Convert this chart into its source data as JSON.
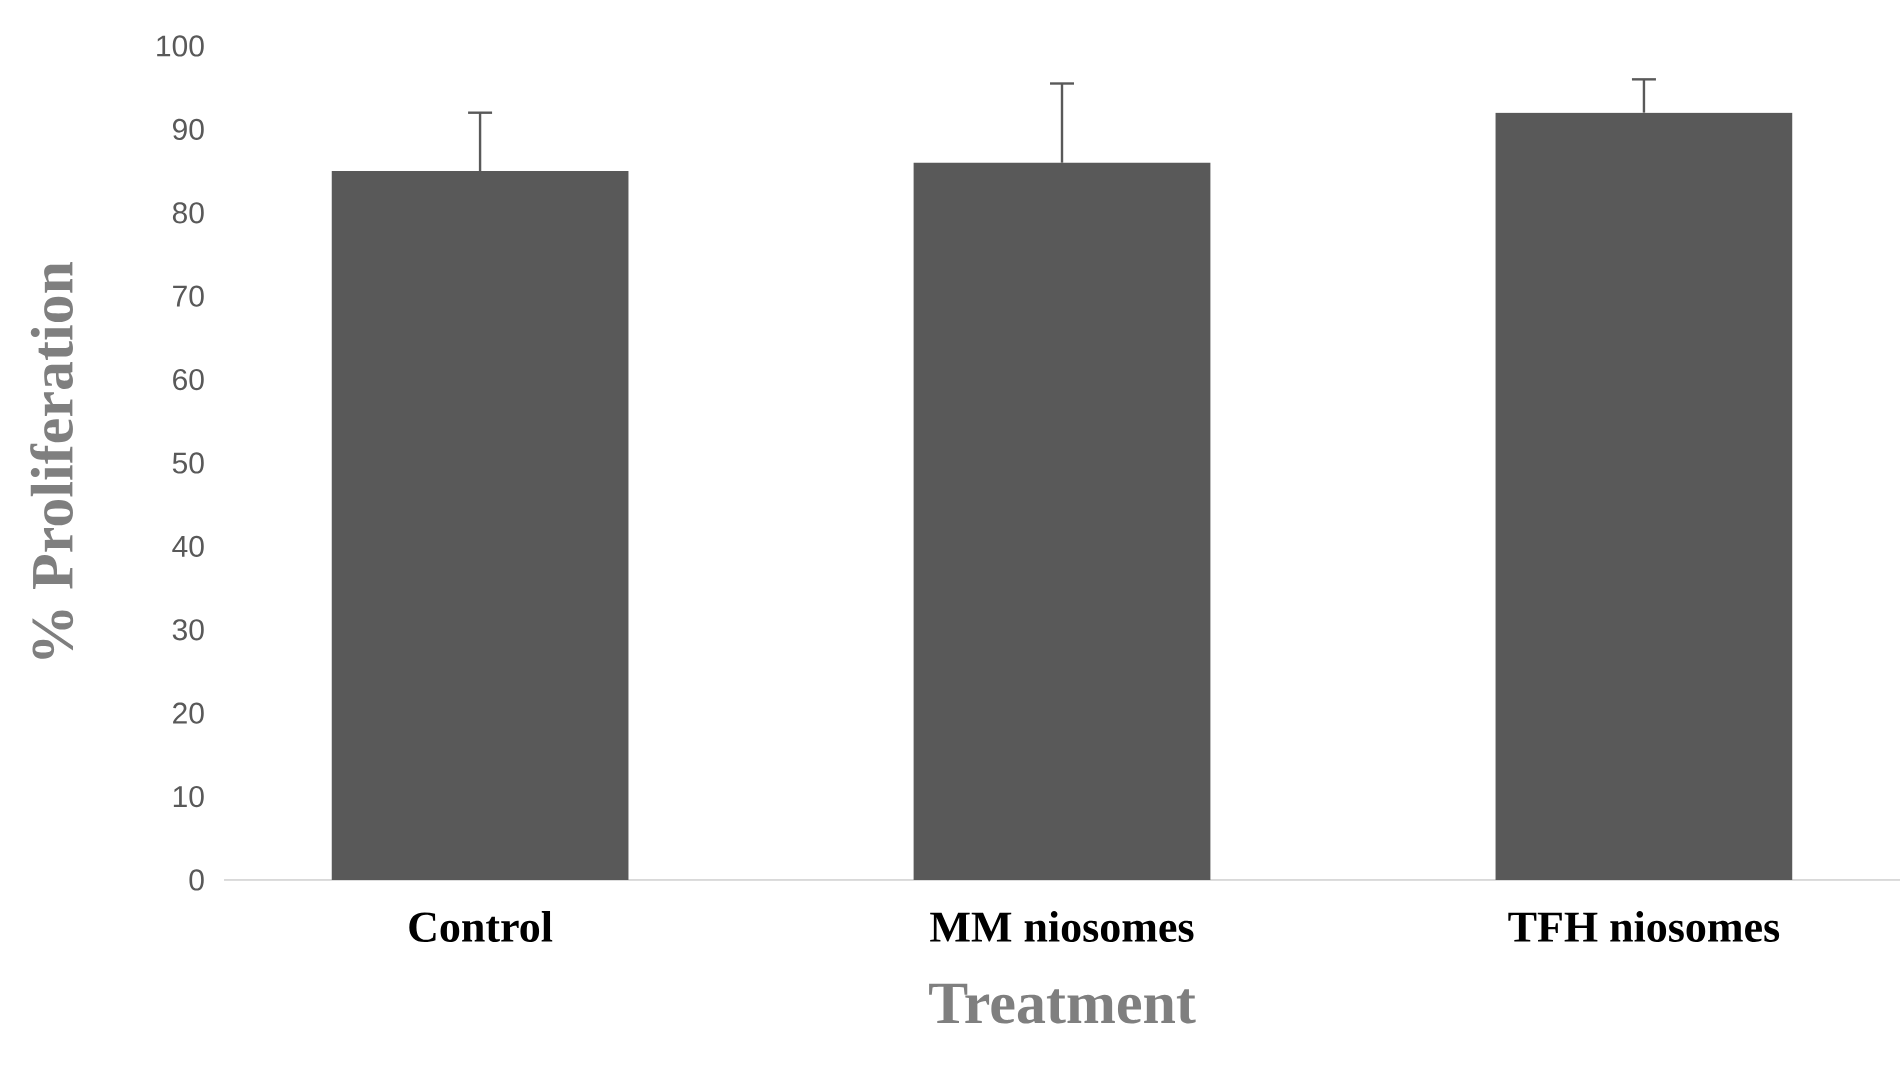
{
  "chart_data": {
    "type": "bar",
    "xlabel": "Treatment",
    "ylabel": "% Proliferation",
    "categories": [
      "Control",
      "MM niosomes",
      "TFH niosomes"
    ],
    "values": [
      85,
      86,
      92
    ],
    "errors": [
      [
        85,
        92
      ],
      [
        86,
        95.5
      ],
      [
        92,
        96
      ]
    ],
    "color": "#595959",
    "ylim": [
      0,
      100
    ],
    "yticks": [
      0,
      10,
      20,
      30,
      40,
      50,
      60,
      70,
      80,
      90,
      100
    ],
    "grid": false
  }
}
